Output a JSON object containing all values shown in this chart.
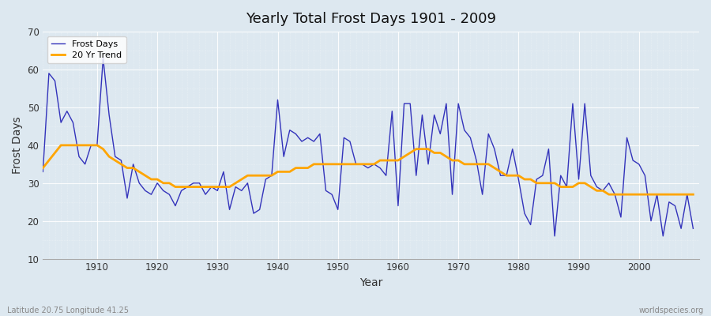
{
  "title": "Yearly Total Frost Days 1901 - 2009",
  "xlabel": "Year",
  "ylabel": "Frost Days",
  "bottom_left": "Latitude 20.75 Longitude 41.25",
  "bottom_right": "worldspecies.org",
  "line_color": "#3333bb",
  "trend_color": "#FFA500",
  "background_color": "#dde8f0",
  "plot_bg_color": "#dde8f0",
  "ylim": [
    10,
    70
  ],
  "yticks": [
    10,
    20,
    30,
    40,
    50,
    60,
    70
  ],
  "frost_days": {
    "1901": 33,
    "1902": 59,
    "1903": 57,
    "1904": 46,
    "1905": 49,
    "1906": 46,
    "1907": 37,
    "1908": 35,
    "1909": 40,
    "1910": 40,
    "1911": 63,
    "1912": 48,
    "1913": 37,
    "1914": 36,
    "1915": 26,
    "1916": 35,
    "1917": 30,
    "1918": 28,
    "1919": 27,
    "1920": 30,
    "1921": 28,
    "1922": 27,
    "1923": 24,
    "1924": 28,
    "1925": 29,
    "1926": 30,
    "1927": 30,
    "1928": 27,
    "1929": 29,
    "1930": 28,
    "1931": 33,
    "1932": 23,
    "1933": 29,
    "1934": 28,
    "1935": 30,
    "1936": 22,
    "1937": 23,
    "1938": 31,
    "1939": 32,
    "1940": 52,
    "1941": 37,
    "1942": 44,
    "1943": 43,
    "1944": 41,
    "1945": 42,
    "1946": 41,
    "1947": 43,
    "1948": 28,
    "1949": 27,
    "1950": 23,
    "1951": 42,
    "1952": 41,
    "1953": 35,
    "1954": 35,
    "1955": 34,
    "1956": 35,
    "1957": 34,
    "1958": 32,
    "1959": 49,
    "1960": 24,
    "1961": 51,
    "1962": 51,
    "1963": 32,
    "1964": 48,
    "1965": 35,
    "1966": 48,
    "1967": 43,
    "1968": 51,
    "1969": 27,
    "1970": 51,
    "1971": 44,
    "1972": 42,
    "1973": 36,
    "1974": 27,
    "1975": 43,
    "1976": 39,
    "1977": 32,
    "1978": 32,
    "1979": 39,
    "1980": 31,
    "1981": 22,
    "1982": 19,
    "1983": 31,
    "1984": 32,
    "1985": 39,
    "1986": 16,
    "1987": 32,
    "1988": 29,
    "1989": 51,
    "1990": 31,
    "1991": 51,
    "1992": 32,
    "1993": 29,
    "1994": 28,
    "1995": 30,
    "1996": 27,
    "1997": 21,
    "1998": 42,
    "1999": 36,
    "2000": 35,
    "2001": 32,
    "2002": 20,
    "2003": 27,
    "2004": 16,
    "2005": 25,
    "2006": 24,
    "2007": 18,
    "2008": 27,
    "2009": 18
  },
  "trend_data": {
    "1901": 34,
    "1902": 36,
    "1903": 38,
    "1904": 40,
    "1905": 40,
    "1906": 40,
    "1907": 40,
    "1908": 40,
    "1909": 40,
    "1910": 40,
    "1911": 39,
    "1912": 37,
    "1913": 36,
    "1914": 35,
    "1915": 34,
    "1916": 34,
    "1917": 33,
    "1918": 32,
    "1919": 31,
    "1920": 31,
    "1921": 30,
    "1922": 30,
    "1923": 29,
    "1924": 29,
    "1925": 29,
    "1926": 29,
    "1927": 29,
    "1928": 29,
    "1929": 29,
    "1930": 29,
    "1931": 29,
    "1932": 29,
    "1933": 30,
    "1934": 31,
    "1935": 32,
    "1936": 32,
    "1937": 32,
    "1938": 32,
    "1939": 32,
    "1940": 33,
    "1941": 33,
    "1942": 33,
    "1943": 34,
    "1944": 34,
    "1945": 34,
    "1946": 35,
    "1947": 35,
    "1948": 35,
    "1949": 35,
    "1950": 35,
    "1951": 35,
    "1952": 35,
    "1953": 35,
    "1954": 35,
    "1955": 35,
    "1956": 35,
    "1957": 36,
    "1958": 36,
    "1959": 36,
    "1960": 36,
    "1961": 37,
    "1962": 38,
    "1963": 39,
    "1964": 39,
    "1965": 39,
    "1966": 38,
    "1967": 38,
    "1968": 37,
    "1969": 36,
    "1970": 36,
    "1971": 35,
    "1972": 35,
    "1973": 35,
    "1974": 35,
    "1975": 35,
    "1976": 34,
    "1977": 33,
    "1978": 32,
    "1979": 32,
    "1980": 32,
    "1981": 31,
    "1982": 31,
    "1983": 30,
    "1984": 30,
    "1985": 30,
    "1986": 30,
    "1987": 29,
    "1988": 29,
    "1989": 29,
    "1990": 30,
    "1991": 30,
    "1992": 29,
    "1993": 28,
    "1994": 28,
    "1995": 27,
    "1996": 27,
    "1997": 27,
    "1998": 27,
    "1999": 27,
    "2000": 27,
    "2001": 27,
    "2002": 27,
    "2003": 27,
    "2004": 27,
    "2005": 27,
    "2006": 27,
    "2007": 27,
    "2008": 27,
    "2009": 27
  }
}
